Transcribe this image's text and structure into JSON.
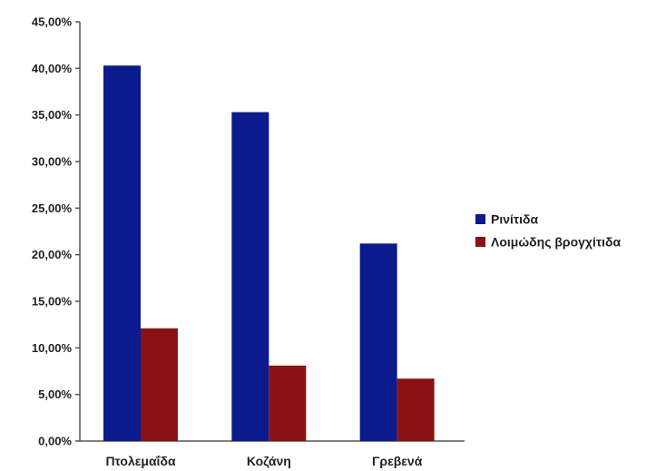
{
  "chart_data": {
    "type": "bar",
    "title": "",
    "xlabel": "",
    "ylabel": "",
    "categories": [
      "Πτολεμαΐδα",
      "Κοζάνη",
      "Γρεβενά"
    ],
    "series": [
      {
        "name": "Ρινίτιδα",
        "color": "#0b1a8c",
        "values": [
          40.3,
          35.3,
          21.2
        ]
      },
      {
        "name": "Λοιμώδης βρογχίτιδα",
        "color": "#8b1212",
        "values": [
          12.1,
          8.1,
          6.7
        ]
      }
    ],
    "ylim": [
      0,
      45
    ],
    "y_ticks": [
      0,
      5,
      10,
      15,
      20,
      25,
      30,
      35,
      40,
      45
    ],
    "y_tick_labels": [
      "0,00%",
      "5,00%",
      "10,00%",
      "15,00%",
      "20,00%",
      "25,00%",
      "30,00%",
      "35,00%",
      "40,00%",
      "45,00%"
    ],
    "grid": false,
    "legend_position": "right"
  }
}
